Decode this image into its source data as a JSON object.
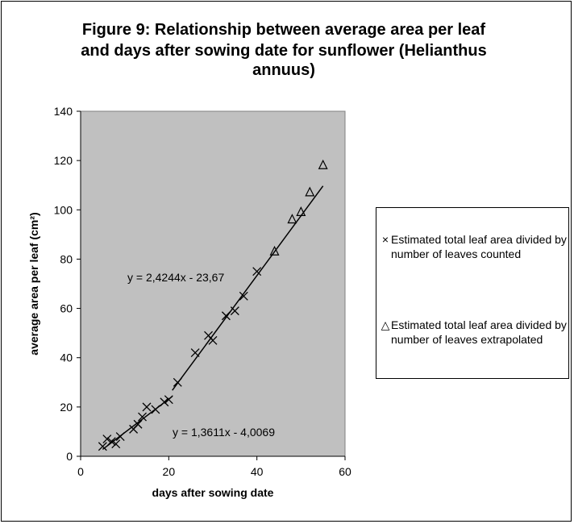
{
  "chart_data": {
    "type": "scatter",
    "title_lines": [
      "Figure 9: Relationship between average area per leaf",
      "and days after sowing date for sunflower (Helianthus",
      "annuus)"
    ],
    "xlabel": "days after sowing date",
    "ylabel": "average area per leaf (cm²)",
    "xlim": [
      0,
      60
    ],
    "ylim": [
      0,
      140
    ],
    "x_ticks": [
      0,
      20,
      40,
      60
    ],
    "y_ticks": [
      0,
      20,
      40,
      60,
      80,
      100,
      120,
      140
    ],
    "plot_background": "#c0c0c0",
    "grid": false,
    "legend_position": "right",
    "series": [
      {
        "name": "Estimated total leaf area divided by number of leaves counted",
        "marker": "x",
        "x": [
          5,
          6,
          7,
          8,
          9,
          12,
          13,
          14,
          15,
          17,
          19,
          20,
          22,
          26,
          29,
          30,
          33,
          35,
          37,
          40
        ],
        "y": [
          4,
          7,
          6,
          5,
          8,
          11,
          13,
          16,
          20,
          19,
          22,
          23,
          30,
          42,
          49,
          47,
          57,
          59,
          65,
          75
        ]
      },
      {
        "name": "Estimated total leaf area divided by number of leaves extrapolated",
        "marker": "triangle",
        "x": [
          44,
          48,
          50,
          52,
          55
        ],
        "y": [
          83,
          96,
          99,
          107,
          118
        ]
      }
    ],
    "trendlines": [
      {
        "equation": "y = 1,3611x - 4,0069",
        "x_range": [
          5,
          20.8
        ]
      },
      {
        "equation": "y = 2,4244x - 23,67",
        "x_range": [
          20.8,
          55
        ]
      }
    ]
  }
}
